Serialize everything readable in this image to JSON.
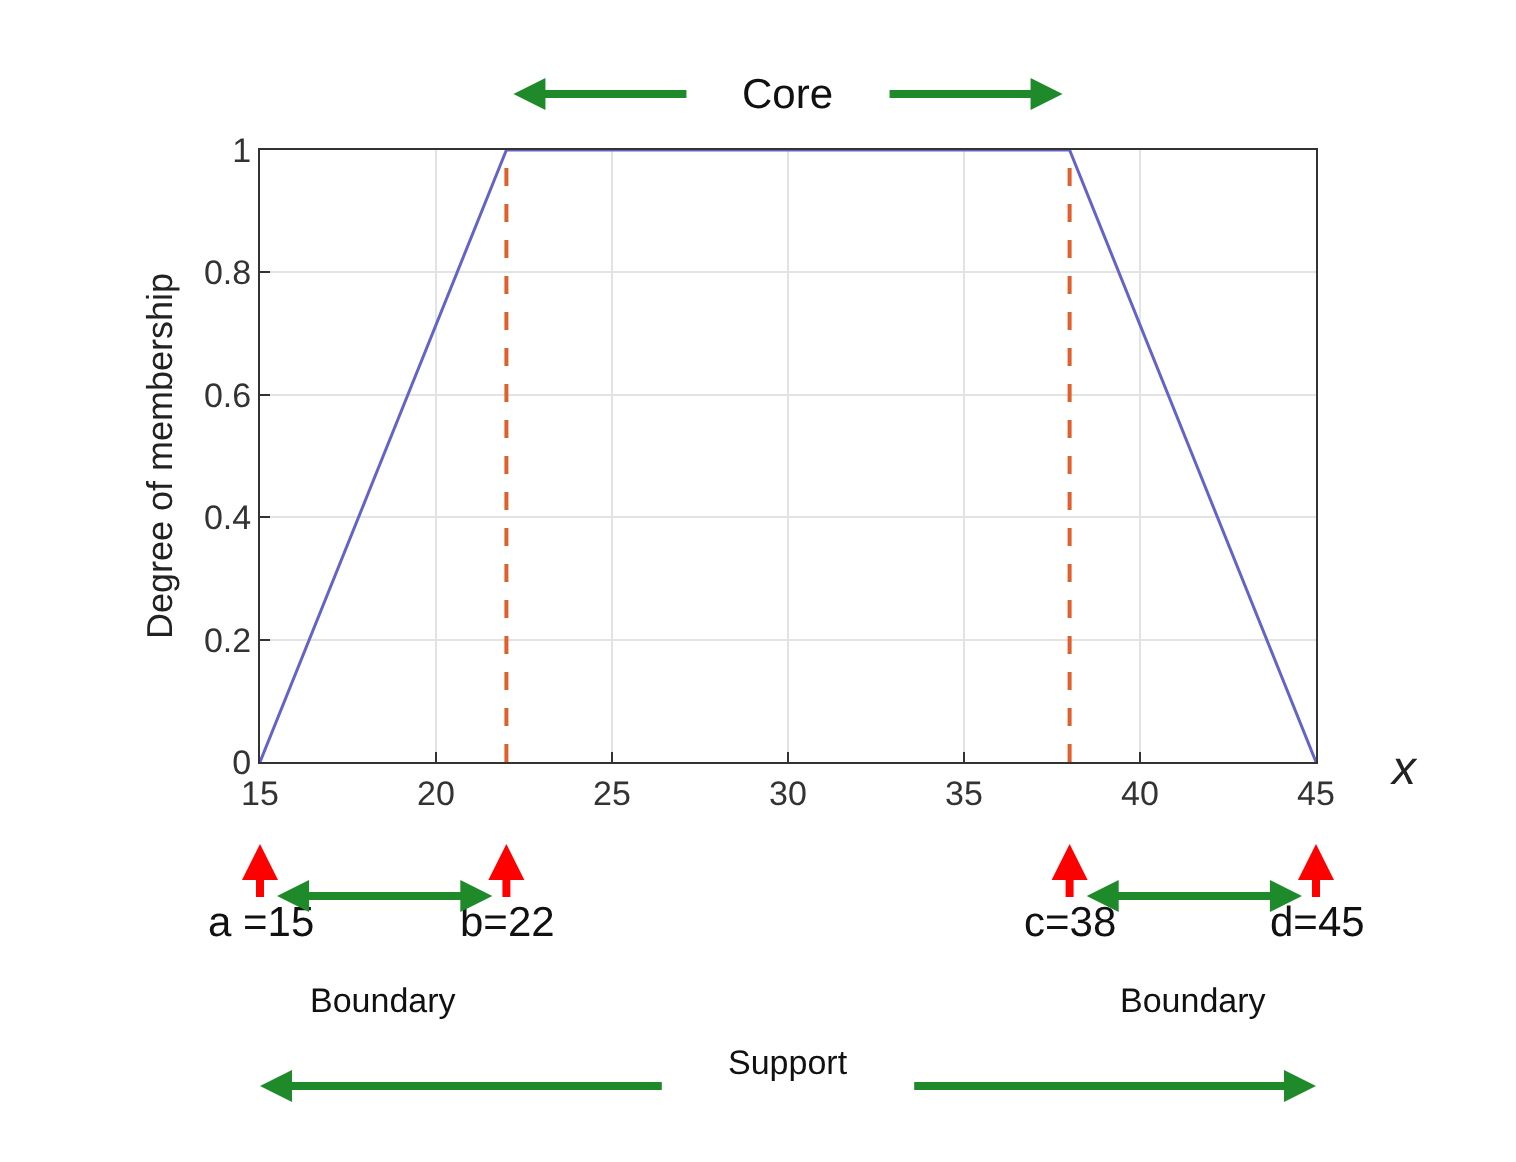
{
  "chart_data": {
    "type": "line",
    "ylabel": "Degree of membership",
    "xlabel": "x",
    "x": [
      15,
      22,
      38,
      45
    ],
    "series": [
      {
        "color": "#6464c8",
        "values": [
          0,
          1,
          1,
          0
        ]
      }
    ],
    "xlim": [
      15,
      45
    ],
    "xticks": [
      15,
      20,
      25,
      30,
      35,
      40,
      45
    ],
    "ylim": [
      0,
      1
    ],
    "yticks": [
      0,
      0.2,
      0.4,
      0.6,
      0.8,
      1
    ],
    "grid": true,
    "marker": "none",
    "ref_lines": [
      {
        "axis": "x",
        "value": 22,
        "color": "#e0602c",
        "line_style": "dashed"
      },
      {
        "axis": "x",
        "value": 38,
        "color": "#e0602c",
        "line_style": "dashed"
      }
    ],
    "annotations": [
      {
        "text": "Core",
        "x": 30,
        "y": 1
      },
      {
        "text": "a =15",
        "x": 15
      },
      {
        "text": "b=22",
        "x": 22
      },
      {
        "text": "c=38",
        "x": 38
      },
      {
        "text": "d=45",
        "x": 45
      },
      "Boundary",
      "Boundary",
      "Support"
    ]
  }
}
